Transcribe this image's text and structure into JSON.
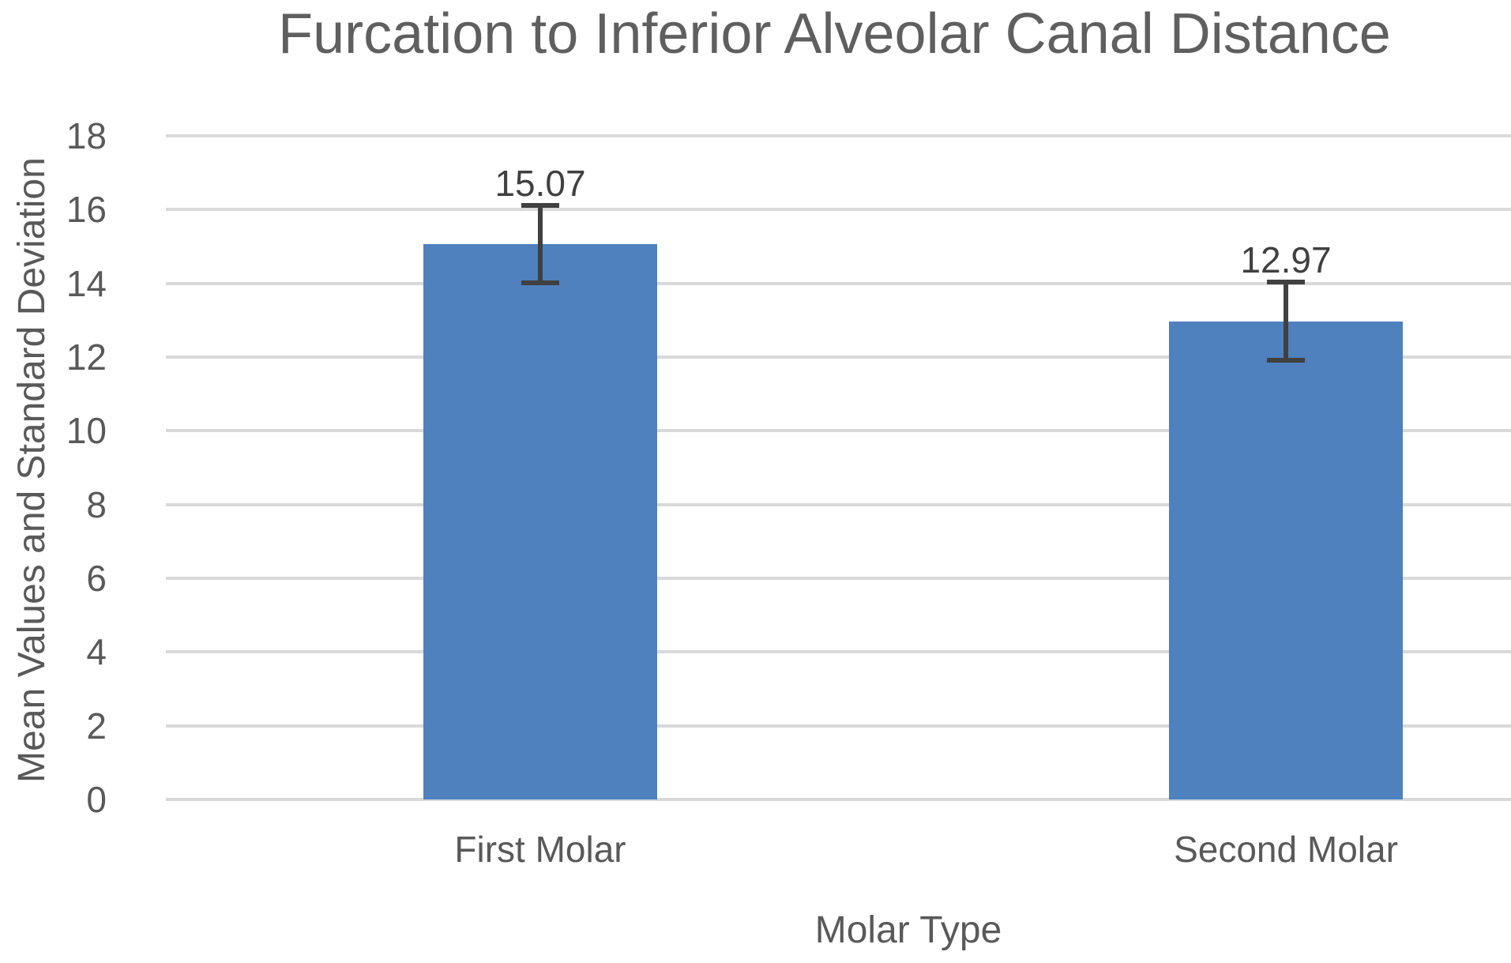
{
  "chart_data": {
    "type": "bar",
    "title": "Furcation to Inferior Alveolar Canal Distance",
    "xlabel": "Molar Type",
    "ylabel": "Mean Values and Standard Deviation",
    "categories": [
      "First Molar",
      "Second Molar"
    ],
    "values": [
      15.07,
      12.97
    ],
    "error_bars": [
      1.05,
      1.06
    ],
    "data_labels": [
      "15.07",
      "12.97"
    ],
    "ylim": [
      0,
      18
    ],
    "yticks": [
      0,
      2,
      4,
      6,
      8,
      10,
      12,
      14,
      16,
      18
    ],
    "grid": "horizontal",
    "legend": "none",
    "colors": {
      "bar": "#4e81bd",
      "gridline": "#d9d9d9",
      "text": "#595959",
      "error_bar": "#404040",
      "background": "#ffffff"
    }
  }
}
